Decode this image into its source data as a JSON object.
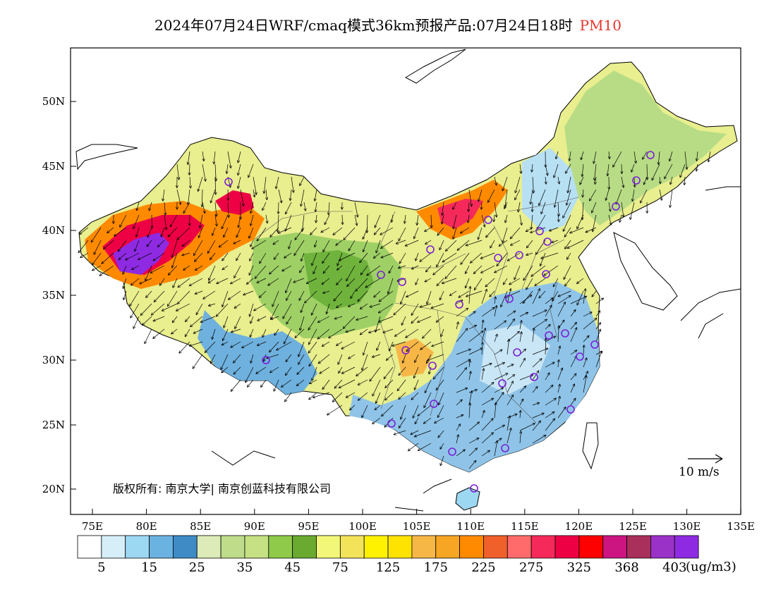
{
  "title": {
    "main": "2024年07月24日WRF/cmaq模式36km预报产品:07月24日18时",
    "variable": "PM10"
  },
  "lat_labels": [
    "50N",
    "45N",
    "40N",
    "35N",
    "30N",
    "25N",
    "20N"
  ],
  "lon_labels": [
    "75E",
    "80E",
    "85E",
    "90E",
    "95E",
    "100E",
    "105E",
    "110E",
    "115E",
    "120E",
    "125E",
    "130E",
    "135E"
  ],
  "copyright": "版权所有: 南京大学| 南京创蓝科技有限公司",
  "wind_scale": "10  m/s",
  "legend": {
    "colors": [
      "#ffffff",
      "#d6eef8",
      "#9dd8f3",
      "#6ab2e0",
      "#3e8bc6",
      "#dcebb8",
      "#bedc8a",
      "#c6e183",
      "#8fca4a",
      "#6aaa30",
      "#f2f77a",
      "#f3e35a",
      "#fff200",
      "#ffe300",
      "#f7b747",
      "#f6a623",
      "#ff8a00",
      "#f0602b",
      "#ff6a6a",
      "#f52a5a",
      "#ee0044",
      "#ff0000",
      "#cc1580",
      "#a9305a",
      "#9b32c8",
      "#8e2be2"
    ],
    "labels": [
      "5",
      "15",
      "25",
      "35",
      "45",
      "75",
      "125",
      "175",
      "225",
      "275",
      "325",
      "368",
      "403"
    ],
    "unit": "(ug/m3)"
  }
}
